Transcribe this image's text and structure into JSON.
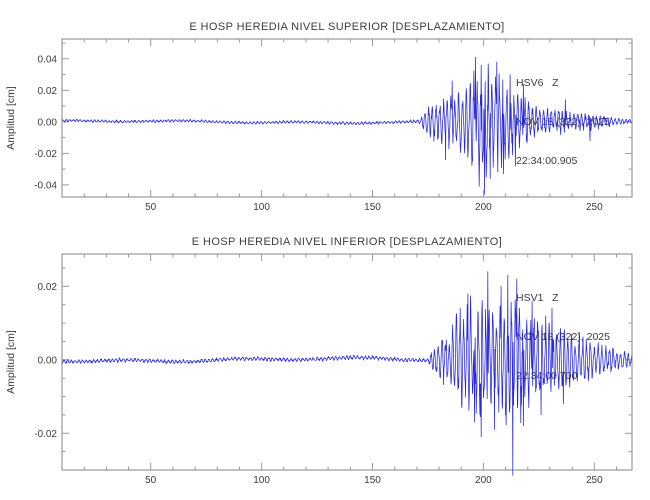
{
  "figure": {
    "background": "#ffffff",
    "frame_color": "#9a9a9a",
    "text_color": "#3c3c3c",
    "trace_color": "#2828dc"
  },
  "chart_data": [
    {
      "type": "line",
      "title": "E HOSP HEREDIA NIVEL SUPERIOR [DESPLAZAMIENTO]",
      "station_label": "HSV6   Z",
      "date_label": "NOV 18 (322), 2025",
      "time_label": "22:34:00.905",
      "ylabel": "Amplitud [cm]",
      "xlabel": "",
      "xlim": [
        10,
        267
      ],
      "ylim": [
        -0.0477,
        0.0526
      ],
      "xticks": [
        50,
        100,
        150,
        200,
        250
      ],
      "x_minor_step": 10,
      "yticks": [
        0.04,
        0.02,
        0,
        -0.02,
        -0.04
      ],
      "y_minor_step": 0.01,
      "grid": false,
      "noise_amp": 0.0006,
      "envelope": [
        [
          10,
          0.0008
        ],
        [
          170,
          0.0009
        ],
        [
          172,
          0.003
        ],
        [
          174,
          0.01
        ],
        [
          178,
          0.013
        ],
        [
          182,
          0.016
        ],
        [
          186,
          0.022
        ],
        [
          190,
          0.022
        ],
        [
          194,
          0.028
        ],
        [
          198,
          0.038
        ],
        [
          201,
          0.042
        ],
        [
          204,
          0.032
        ],
        [
          207,
          0.034
        ],
        [
          210,
          0.03
        ],
        [
          213,
          0.026
        ],
        [
          216,
          0.02
        ],
        [
          219,
          0.015
        ],
        [
          222,
          0.011
        ],
        [
          226,
          0.009
        ],
        [
          230,
          0.008
        ],
        [
          234,
          0.008
        ],
        [
          238,
          0.007
        ],
        [
          242,
          0.006
        ],
        [
          246,
          0.006
        ],
        [
          250,
          0.005
        ],
        [
          254,
          0.004
        ],
        [
          258,
          0.003
        ],
        [
          262,
          0.002
        ],
        [
          267,
          0.0015
        ]
      ],
      "spikes": [
        [
          183,
          -0.024
        ],
        [
          186,
          0.026
        ],
        [
          196.5,
          0.041
        ],
        [
          199,
          0.036
        ],
        [
          200.5,
          -0.046
        ],
        [
          203,
          -0.036
        ],
        [
          206,
          0.038
        ],
        [
          209,
          -0.033
        ],
        [
          212,
          0.03
        ],
        [
          214.5,
          -0.028
        ],
        [
          218,
          0.024
        ],
        [
          237,
          0.014
        ],
        [
          248,
          -0.012
        ]
      ],
      "seed": 7
    },
    {
      "type": "line",
      "title": "E HOSP HEREDIA NIVEL INFERIOR [DESPLAZAMIENTO]",
      "station_label": "HSV1   Z",
      "date_label": "NOV 18 (322), 2025",
      "time_label": "22:34:00.700",
      "ylabel": "Amplitud [cm]",
      "xlabel": "",
      "xlim": [
        10,
        267
      ],
      "ylim": [
        -0.03,
        0.0288
      ],
      "xticks": [
        50,
        100,
        150,
        200,
        250
      ],
      "x_minor_step": 10,
      "yticks": [
        0.02,
        0,
        -0.02
      ],
      "y_minor_step": 0.005,
      "grid": false,
      "noise_amp": 0.0004,
      "envelope": [
        [
          10,
          0.0005
        ],
        [
          175,
          0.0005
        ],
        [
          177,
          0.003
        ],
        [
          180,
          0.006
        ],
        [
          184,
          0.008
        ],
        [
          188,
          0.012
        ],
        [
          192,
          0.014
        ],
        [
          196,
          0.016
        ],
        [
          200,
          0.018
        ],
        [
          204,
          0.016
        ],
        [
          208,
          0.015
        ],
        [
          212,
          0.02
        ],
        [
          216,
          0.016
        ],
        [
          220,
          0.013
        ],
        [
          224,
          0.013
        ],
        [
          228,
          0.012
        ],
        [
          232,
          0.01
        ],
        [
          236,
          0.009
        ],
        [
          240,
          0.008
        ],
        [
          244,
          0.007
        ],
        [
          248,
          0.006
        ],
        [
          252,
          0.005
        ],
        [
          256,
          0.004
        ],
        [
          260,
          0.003
        ],
        [
          267,
          0.002
        ]
      ],
      "spikes": [
        [
          193,
          0.018
        ],
        [
          196,
          -0.017
        ],
        [
          199,
          -0.021
        ],
        [
          202,
          0.024
        ],
        [
          205,
          -0.019
        ],
        [
          208,
          0.02
        ],
        [
          211,
          0.023
        ],
        [
          213.2,
          -0.0315
        ],
        [
          215,
          0.022
        ],
        [
          218,
          -0.018
        ],
        [
          222,
          0.016
        ],
        [
          226,
          -0.015
        ],
        [
          231,
          0.014
        ],
        [
          236,
          -0.012
        ]
      ],
      "seed": 11
    }
  ]
}
